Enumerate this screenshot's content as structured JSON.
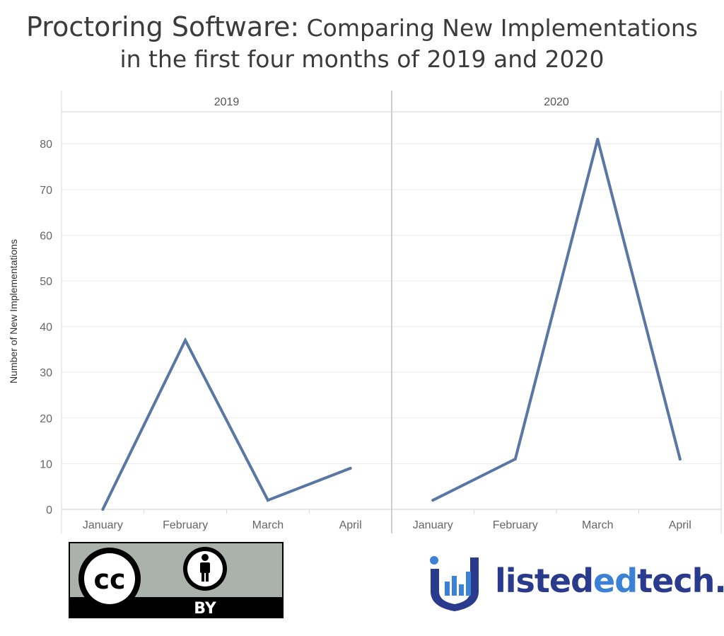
{
  "title": {
    "main": "Proctoring Software:",
    "rest": " Comparing New Implementations",
    "line2": "in the first four months of 2019 and 2020"
  },
  "chart_data": {
    "type": "line",
    "ylabel": "Number of New Implementations",
    "ylim": [
      0,
      87
    ],
    "yticks": [
      0,
      10,
      20,
      30,
      40,
      50,
      60,
      70,
      80
    ],
    "grid": true,
    "line_color": "#5a77a4",
    "panels": [
      {
        "name": "2019",
        "categories": [
          "January",
          "February",
          "March",
          "April"
        ],
        "values": [
          0,
          37,
          2,
          9
        ]
      },
      {
        "name": "2020",
        "categories": [
          "January",
          "February",
          "March",
          "April"
        ],
        "values": [
          2,
          11,
          81,
          11
        ]
      }
    ]
  },
  "logos": {
    "cc_text": "cc",
    "cc_by": "BY",
    "brand_left": "listed",
    "brand_ed": "ed",
    "brand_right": "tech."
  }
}
